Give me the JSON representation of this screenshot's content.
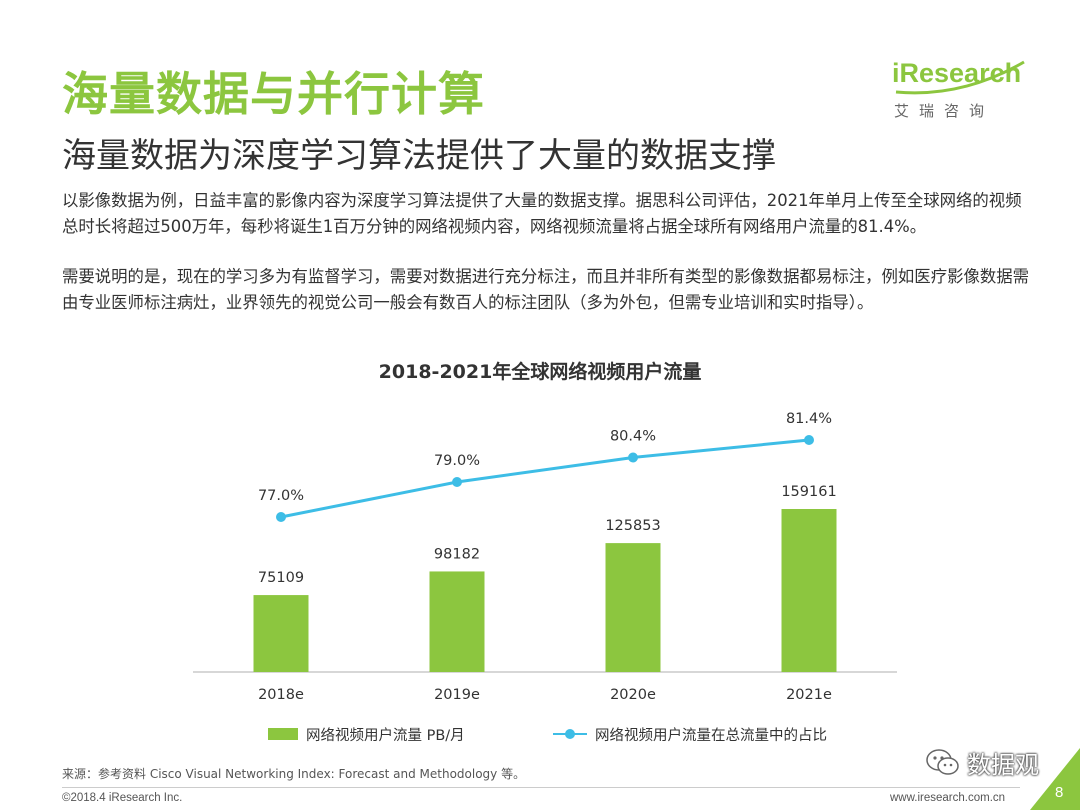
{
  "header": {
    "title": "海量数据与并行计算",
    "subtitle": "海量数据为深度学习算法提供了大量的数据支撑",
    "logo_wordmark": "iResearch",
    "logo_cn": "艾瑞咨询"
  },
  "body": {
    "paragraph1": "以影像数据为例，日益丰富的影像内容为深度学习算法提供了大量的数据支撑。据思科公司评估，2021年单月上传至全球网络的视频总时长将超过500万年，每秒将诞生1百万分钟的网络视频内容，网络视频流量将占据全球所有网络用户流量的81.4%。",
    "paragraph2": "需要说明的是，现在的学习多为有监督学习，需要对数据进行充分标注，而且并非所有类型的影像数据都易标注，例如医疗影像数据需由专业医师标注病灶，业界领先的视觉公司一般会有数百人的标注团队（多为外包，但需专业培训和实时指导）。"
  },
  "chart_data": {
    "type": "bar",
    "title": "2018-2021年全球网络视频用户流量",
    "categories": [
      "2018e",
      "2019e",
      "2020e",
      "2021e"
    ],
    "series": [
      {
        "name": "网络视频用户流量 PB/月",
        "type": "bar",
        "values": [
          75109,
          98182,
          125853,
          159161
        ],
        "labels": [
          "75109",
          "98182",
          "125853",
          "159161"
        ],
        "color": "#8cc63f"
      },
      {
        "name": "网络视频用户流量在总流量中的占比",
        "type": "line",
        "values": [
          77.0,
          79.0,
          80.4,
          81.4
        ],
        "labels": [
          "77.0%",
          "79.0%",
          "80.4%",
          "81.4%"
        ],
        "color": "#3dbde6"
      }
    ],
    "grid": false,
    "legend": "bottom"
  },
  "footer": {
    "source": "来源：参考资料 Cisco Visual Networking Index: Forecast and Methodology 等。",
    "copyright": "©2018.4 iResearch Inc.",
    "website": "www.iresearch.com.cn",
    "page_number": "8",
    "watermark": "数据观"
  },
  "colors": {
    "accent": "#8cc63f",
    "line": "#3dbde6",
    "text": "#333333"
  }
}
